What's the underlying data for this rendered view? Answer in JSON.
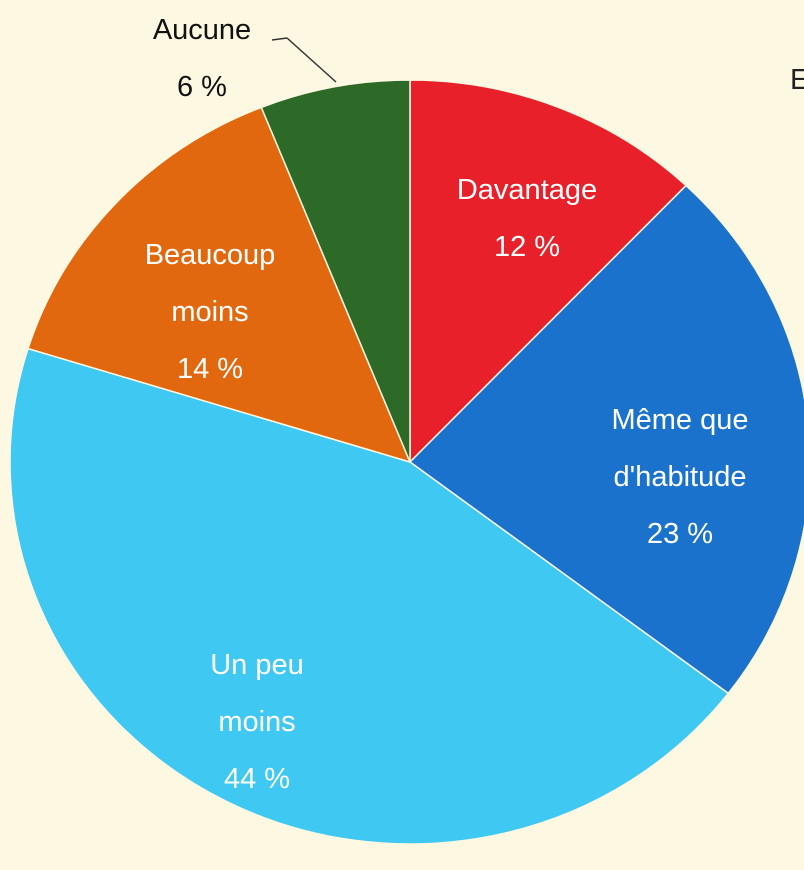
{
  "chart_data": {
    "type": "pie",
    "categories": [
      "Davantage",
      "Même que d'habitude",
      "Un peu moins",
      "Beaucoup moins",
      "Aucune"
    ],
    "values": [
      12,
      23,
      44,
      14,
      6
    ],
    "value_labels": [
      "12 %",
      "23 %",
      "44 %",
      "14 %",
      "6 %"
    ],
    "colors": [
      "#e8202a",
      "#1a72cc",
      "#3ec8f2",
      "#e2680f",
      "#2d6a28"
    ],
    "annotations": [
      "E"
    ]
  }
}
